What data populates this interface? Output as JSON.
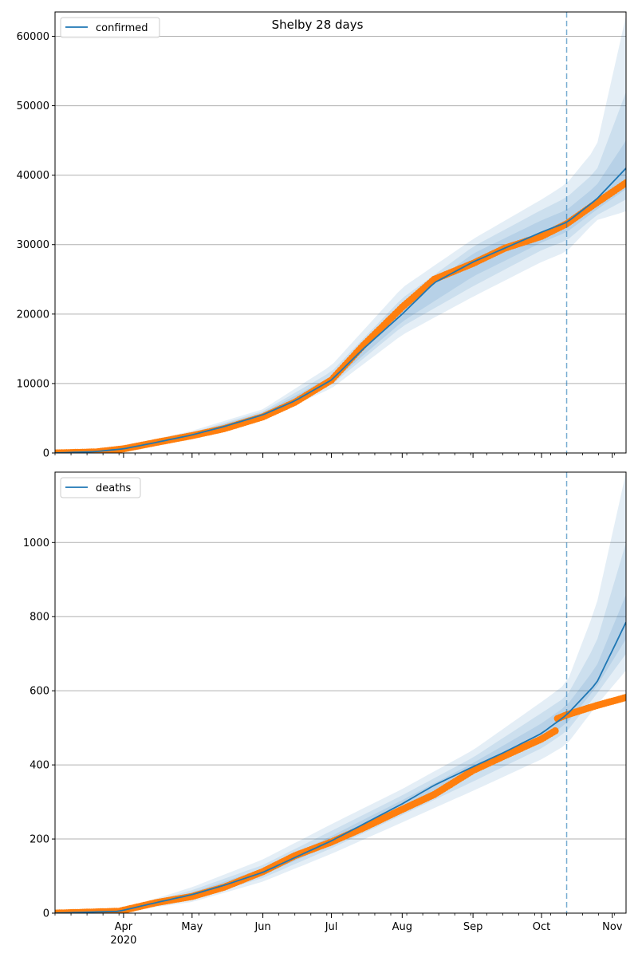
{
  "figure": {
    "title": "Shelby 28 days"
  },
  "colors": {
    "model": "#1f77b4",
    "observed": "#ff7f0e",
    "band": "#1f77b4",
    "grid": "#b0b0b0",
    "cutoff": "#1f77b4"
  },
  "chart_data": [
    {
      "type": "line",
      "title": "Shelby 28 days",
      "xlabel": "",
      "ylabel": "",
      "x_range": [
        "2020-03-02",
        "2020-11-07"
      ],
      "ylim": [
        0,
        63500
      ],
      "y_ticks": [
        0,
        10000,
        20000,
        30000,
        40000,
        50000,
        60000
      ],
      "x_ticks": [
        {
          "date": "2020-04-01",
          "label": "Apr",
          "sublabel": "2020"
        },
        {
          "date": "2020-05-01",
          "label": "May"
        },
        {
          "date": "2020-06-01",
          "label": "Jun"
        },
        {
          "date": "2020-07-01",
          "label": "Jul"
        },
        {
          "date": "2020-08-01",
          "label": "Aug"
        },
        {
          "date": "2020-09-01",
          "label": "Sep"
        },
        {
          "date": "2020-10-01",
          "label": "Oct"
        },
        {
          "date": "2020-11-01",
          "label": "Nov"
        }
      ],
      "grid": "horizontal",
      "legend": {
        "position": "top-left",
        "entries": [
          "confirmed"
        ]
      },
      "cutoff_date": "2020-10-12",
      "series": [
        {
          "name": "confirmed",
          "kind": "model",
          "x": [
            "2020-03-02",
            "2020-03-20",
            "2020-04-01",
            "2020-04-15",
            "2020-05-01",
            "2020-05-15",
            "2020-06-01",
            "2020-06-15",
            "2020-07-01",
            "2020-07-15",
            "2020-08-01",
            "2020-08-15",
            "2020-09-01",
            "2020-09-15",
            "2020-10-01",
            "2020-10-12",
            "2020-10-25",
            "2020-11-07"
          ],
          "values": [
            0,
            200,
            600,
            1500,
            2600,
            3800,
            5500,
            7500,
            10500,
            15000,
            20000,
            24500,
            27500,
            29500,
            31800,
            33200,
            36500,
            41000
          ]
        },
        {
          "name": "observed",
          "kind": "scatter",
          "x": [
            "2020-03-02",
            "2020-03-20",
            "2020-04-01",
            "2020-04-15",
            "2020-05-01",
            "2020-05-15",
            "2020-06-01",
            "2020-06-15",
            "2020-07-01",
            "2020-07-15",
            "2020-08-01",
            "2020-08-15",
            "2020-09-01",
            "2020-09-15",
            "2020-10-01",
            "2020-10-12",
            "2020-10-25",
            "2020-11-07"
          ],
          "values": [
            0,
            150,
            600,
            1500,
            2500,
            3500,
            5200,
            7300,
            10500,
            15500,
            21000,
            25000,
            27300,
            29500,
            31200,
            33000,
            36000,
            38900
          ]
        }
      ],
      "bands": [
        {
          "level": "outer",
          "x": [
            "2020-03-02",
            "2020-04-01",
            "2020-05-01",
            "2020-06-01",
            "2020-07-01",
            "2020-08-01",
            "2020-09-01",
            "2020-10-01",
            "2020-10-12",
            "2020-10-25",
            "2020-11-07"
          ],
          "lower": [
            0,
            400,
            2200,
            4900,
            9300,
            17000,
            22500,
            27500,
            29000,
            33500,
            34800
          ],
          "upper": [
            0,
            900,
            3200,
            6300,
            12600,
            23800,
            30800,
            36500,
            38800,
            44000,
            63000
          ]
        },
        {
          "level": "middle",
          "x": [
            "2020-03-02",
            "2020-04-01",
            "2020-05-01",
            "2020-06-01",
            "2020-07-01",
            "2020-08-01",
            "2020-09-01",
            "2020-10-01",
            "2020-10-12",
            "2020-10-25",
            "2020-11-07"
          ],
          "lower": [
            0,
            450,
            2350,
            5100,
            9800,
            18200,
            24000,
            29200,
            30600,
            34200,
            36500
          ],
          "upper": [
            0,
            800,
            2950,
            6000,
            11700,
            22300,
            29700,
            35000,
            36800,
            40600,
            52000
          ]
        },
        {
          "level": "inner",
          "x": [
            "2020-03-02",
            "2020-04-01",
            "2020-05-01",
            "2020-06-01",
            "2020-07-01",
            "2020-08-01",
            "2020-09-01",
            "2020-10-01",
            "2020-10-12",
            "2020-10-25",
            "2020-11-07"
          ],
          "lower": [
            0,
            500,
            2450,
            5250,
            10100,
            18900,
            25400,
            30300,
            31800,
            35000,
            38000
          ],
          "upper": [
            0,
            720,
            2800,
            5800,
            11000,
            21200,
            28700,
            33500,
            35000,
            38500,
            45000
          ]
        }
      ]
    },
    {
      "type": "line",
      "title": "",
      "xlabel": "",
      "ylabel": "",
      "x_range": [
        "2020-03-02",
        "2020-11-07"
      ],
      "ylim": [
        0,
        1190
      ],
      "y_ticks": [
        0,
        200,
        400,
        600,
        800,
        1000
      ],
      "x_ticks": [
        {
          "date": "2020-04-01",
          "label": "Apr",
          "sublabel": "2020"
        },
        {
          "date": "2020-05-01",
          "label": "May"
        },
        {
          "date": "2020-06-01",
          "label": "Jun"
        },
        {
          "date": "2020-07-01",
          "label": "Jul"
        },
        {
          "date": "2020-08-01",
          "label": "Aug"
        },
        {
          "date": "2020-09-01",
          "label": "Sep"
        },
        {
          "date": "2020-10-01",
          "label": "Oct"
        },
        {
          "date": "2020-11-01",
          "label": "Nov"
        }
      ],
      "grid": "horizontal",
      "legend": {
        "position": "top-left",
        "entries": [
          "deaths"
        ]
      },
      "cutoff_date": "2020-10-12",
      "series": [
        {
          "name": "deaths",
          "kind": "model",
          "x": [
            "2020-03-02",
            "2020-03-30",
            "2020-04-15",
            "2020-05-01",
            "2020-05-15",
            "2020-06-01",
            "2020-06-15",
            "2020-07-01",
            "2020-07-15",
            "2020-08-01",
            "2020-08-15",
            "2020-09-01",
            "2020-09-15",
            "2020-10-01",
            "2020-10-12",
            "2020-10-25",
            "2020-11-07"
          ],
          "values": [
            0,
            5,
            28,
            50,
            75,
            110,
            150,
            195,
            240,
            295,
            345,
            395,
            435,
            485,
            535,
            620,
            785
          ]
        },
        {
          "name": "observed",
          "kind": "scatter",
          "x": [
            "2020-03-02",
            "2020-03-30",
            "2020-04-15",
            "2020-05-01",
            "2020-05-15",
            "2020-06-01",
            "2020-06-15",
            "2020-07-01",
            "2020-07-15",
            "2020-08-01",
            "2020-08-15",
            "2020-09-01",
            "2020-09-15",
            "2020-10-01",
            "2020-10-07",
            "2020-10-08",
            "2020-10-12",
            "2020-10-25",
            "2020-11-07"
          ],
          "values": [
            0,
            5,
            28,
            45,
            70,
            112,
            155,
            192,
            230,
            280,
            320,
            385,
            425,
            470,
            492,
            525,
            535,
            560,
            582
          ]
        }
      ],
      "bands": [
        {
          "level": "outer",
          "x": [
            "2020-03-02",
            "2020-03-30",
            "2020-05-01",
            "2020-06-01",
            "2020-07-01",
            "2020-08-01",
            "2020-09-01",
            "2020-10-01",
            "2020-10-12",
            "2020-10-25",
            "2020-11-07"
          ],
          "lower": [
            0,
            3,
            30,
            85,
            160,
            245,
            330,
            415,
            455,
            560,
            655
          ],
          "upper": [
            0,
            8,
            70,
            145,
            240,
            335,
            440,
            570,
            620,
            830,
            1190
          ]
        },
        {
          "level": "middle",
          "x": [
            "2020-03-02",
            "2020-03-30",
            "2020-05-01",
            "2020-06-01",
            "2020-07-01",
            "2020-08-01",
            "2020-09-01",
            "2020-10-01",
            "2020-10-12",
            "2020-10-25",
            "2020-11-07"
          ],
          "lower": [
            0,
            4,
            37,
            95,
            175,
            265,
            355,
            445,
            490,
            590,
            700
          ],
          "upper": [
            0,
            7,
            62,
            130,
            222,
            318,
            420,
            540,
            585,
            730,
            1000
          ]
        },
        {
          "level": "inner",
          "x": [
            "2020-03-02",
            "2020-03-30",
            "2020-05-01",
            "2020-06-01",
            "2020-07-01",
            "2020-08-01",
            "2020-09-01",
            "2020-10-01",
            "2020-10-12",
            "2020-10-25",
            "2020-11-07"
          ],
          "lower": [
            0,
            4,
            43,
            103,
            185,
            280,
            375,
            465,
            512,
            610,
            740
          ],
          "upper": [
            0,
            6,
            56,
            120,
            208,
            305,
            405,
            512,
            560,
            665,
            860
          ]
        }
      ]
    }
  ]
}
